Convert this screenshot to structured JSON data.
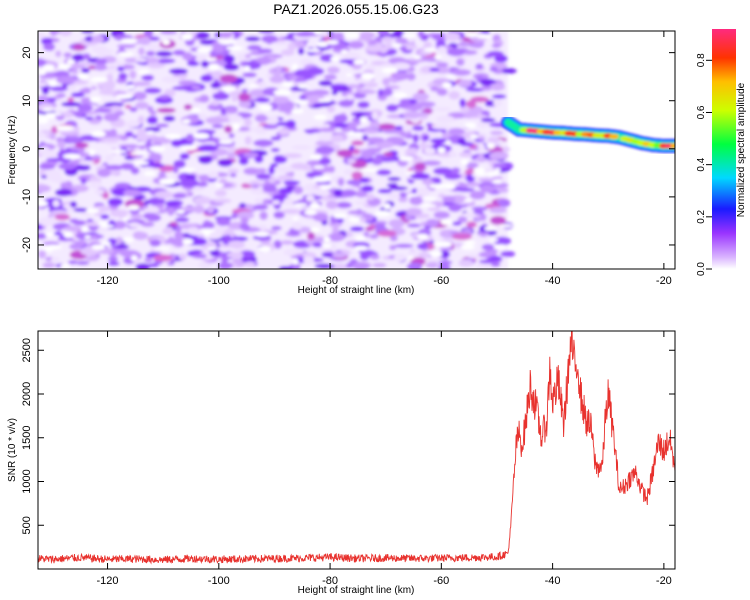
{
  "figure": {
    "title": "PAZ1.2026.055.15.06.G23"
  },
  "chart_data": [
    {
      "type": "heatmap",
      "panel": "top",
      "xlabel": "Height of straight line (km)",
      "ylabel": "Frequency (Hz)",
      "xlim": [
        -132.5,
        -18
      ],
      "ylim": [
        -25,
        24.5
      ],
      "x_ticks": [
        -120,
        -100,
        -80,
        -60,
        -40,
        -20
      ],
      "y_ticks": [
        -20,
        -10,
        0,
        10,
        20
      ],
      "colorbar": {
        "label": "Normalized spectral amplitude",
        "range": [
          0,
          0.92
        ],
        "ticks": [
          "0.0",
          "0.2",
          "0.4",
          "0.6",
          "0.8"
        ],
        "scale": "rainbow (purple to red)"
      },
      "noise_region": {
        "x_range": [
          -132.5,
          -48
        ],
        "frequency_range": [
          -25,
          24.5
        ],
        "max_amplitude": 0.2
      },
      "signal_ridge": {
        "x": [
          -48,
          -46,
          -44,
          -42,
          -40,
          -38,
          -36,
          -34,
          -32,
          -30,
          -28,
          -26,
          -24,
          -22,
          -20,
          -18
        ],
        "frequency": [
          5.5,
          4,
          3.8,
          3.6,
          3.4,
          3.3,
          3.1,
          3.0,
          2.8,
          2.7,
          2.4,
          1.8,
          1.2,
          0.8,
          0.6,
          0.6
        ],
        "amplitude": [
          0.3,
          0.55,
          0.85,
          0.9,
          0.8,
          0.75,
          0.8,
          0.75,
          0.7,
          0.75,
          0.65,
          0.6,
          0.7,
          0.6,
          0.85,
          0.8
        ]
      }
    },
    {
      "type": "line",
      "panel": "bottom",
      "xlabel": "Height of straight line (km)",
      "ylabel": "SNR (10 * v/v)",
      "xlim": [
        -132.5,
        -18
      ],
      "ylim": [
        0,
        2720
      ],
      "x_ticks": [
        -120,
        -100,
        -80,
        -60,
        -40,
        -20
      ],
      "y_ticks": [
        500,
        1000,
        1500,
        2000,
        2500
      ],
      "color": "#e8322e",
      "series": [
        {
          "x": [
            -132.5,
            -130,
            -125,
            -120,
            -115,
            -110,
            -105,
            -100,
            -95,
            -90,
            -85,
            -80,
            -75,
            -70,
            -65,
            -60,
            -55,
            -50,
            -48,
            -47.5,
            -47,
            -46.5,
            -46,
            -45.5,
            -45,
            -44,
            -43,
            -42,
            -41,
            -40.5,
            -40,
            -39,
            -38,
            -37,
            -36.5,
            -36,
            -35.5,
            -35,
            -34,
            -33,
            -32.5,
            -32,
            -31,
            -30.5,
            -30,
            -29,
            -28,
            -27,
            -26,
            -25,
            -24,
            -23,
            -22,
            -21,
            -20,
            -19,
            -18
          ],
          "y": [
            120,
            110,
            130,
            110,
            115,
            105,
            120,
            110,
            115,
            120,
            125,
            135,
            120,
            125,
            120,
            125,
            130,
            140,
            180,
            500,
            1000,
            1450,
            1550,
            1400,
            1600,
            2100,
            1850,
            1500,
            1700,
            2300,
            1900,
            2150,
            1650,
            2400,
            2600,
            2250,
            2400,
            2000,
            1700,
            1600,
            1250,
            1150,
            1200,
            1750,
            2000,
            1500,
            900,
            950,
            1050,
            1100,
            900,
            800,
            1100,
            1450,
            1350,
            1500,
            1150
          ]
        }
      ]
    }
  ]
}
